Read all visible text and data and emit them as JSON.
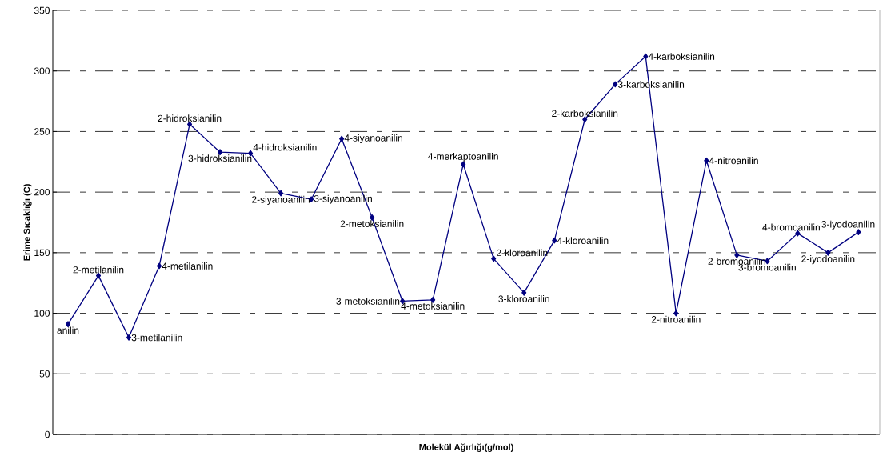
{
  "chart_data": {
    "type": "line",
    "xlabel": "Molekül Ağırlığı(g/mol)",
    "ylabel": "Erime Sıcaklığı (C)",
    "categories": [
      null,
      null,
      null,
      null,
      null,
      null,
      null,
      null,
      null,
      null,
      null,
      null,
      null,
      null,
      null,
      null,
      null,
      null,
      null,
      null,
      null,
      null,
      null,
      null,
      null,
      null,
      null
    ],
    "series": [
      {
        "color": "#000080",
        "values": [
          91,
          131,
          80,
          139,
          256,
          233,
          232,
          199,
          194,
          244,
          179,
          110,
          111,
          223,
          145,
          117,
          160,
          260,
          289,
          312,
          100,
          226,
          148,
          143,
          166,
          150,
          167
        ]
      }
    ],
    "annotations": [
      "anilin",
      "2-metilanilin",
      "3-metilanilin",
      "4-metilanilin",
      "2-hidroksianilin",
      "3-hidroksianilin",
      "4-hidroksianilin",
      "2-siyanoanilin",
      "3-siyanoanilin",
      "4-siyanoanilin",
      "2-metoksianilin",
      "3-metoksianilin",
      "4-metoksianilin",
      "4-merkaptoanilin",
      "2-kloroanilin",
      "3-kloroanilin",
      "4-kloroanilin",
      "2-karboksianilin",
      "3-karboksianilin",
      "4-karboksianilin",
      "2-nitroanilin",
      "4-nitroanilin",
      "2-bromoanilin",
      "3-bromoanilin",
      "4-bromoanilin",
      "2-iyodoanilin",
      "3-iyodoanilin"
    ],
    "ylim": [
      0,
      350
    ],
    "yticks": [
      0,
      50,
      100,
      150,
      200,
      250,
      300,
      350
    ],
    "grid": "y",
    "marker": "diamond",
    "line_style": "solid"
  }
}
